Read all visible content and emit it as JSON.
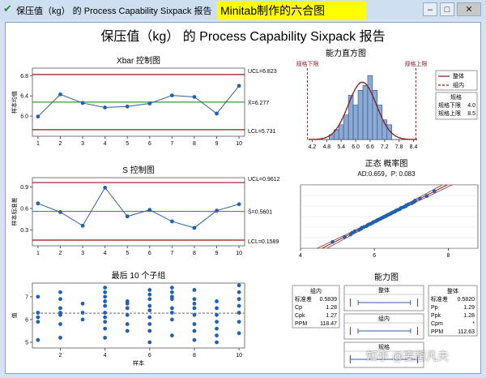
{
  "window": {
    "title": "保压值（kg） 的 Process Capability Sixpack 报告",
    "banner": "Minitab制作的六合图",
    "controls": {
      "minimize": "–",
      "maximize": "□",
      "close": "✕"
    }
  },
  "watermark": "知乎 @妄想凡夫",
  "chart_data": {
    "type": "capability-sixpack",
    "title": "保压值（kg） 的 Process Capability Sixpack 报告",
    "xbar": {
      "title": "Xbar 控制图",
      "ylabel": "样本均值",
      "x": [
        1,
        2,
        3,
        4,
        5,
        6,
        7,
        8,
        9,
        10
      ],
      "values": [
        5.99,
        6.43,
        6.26,
        6.17,
        6.19,
        6.25,
        6.41,
        6.38,
        6.05,
        6.6
      ],
      "ylim": [
        5.6,
        6.95
      ],
      "yticks": [
        "6.8",
        "6.4",
        "6.0"
      ],
      "ytick_values": [
        6.8,
        6.4,
        6.0
      ],
      "xticks": [
        "1",
        "2",
        "3",
        "4",
        "5",
        "6",
        "7",
        "8",
        "9",
        "10"
      ],
      "ucl": 6.823,
      "center": 6.277,
      "lcl": 5.731,
      "ucl_label": "UCL=6.823",
      "center_label": "X̄=6.277",
      "lcl_label": "LCL=5.731"
    },
    "s_chart": {
      "title": "S 控制图",
      "ylabel": "样本标准差",
      "x": [
        1,
        2,
        3,
        4,
        5,
        6,
        7,
        8,
        9,
        10
      ],
      "values": [
        0.67,
        0.55,
        0.36,
        0.89,
        0.49,
        0.58,
        0.42,
        0.33,
        0.57,
        0.66
      ],
      "ylim": [
        0.08,
        1.03
      ],
      "yticks": [
        "0.9",
        "0.6",
        "0.3"
      ],
      "ytick_values": [
        0.9,
        0.6,
        0.3
      ],
      "xticks": [
        "1",
        "2",
        "3",
        "4",
        "5",
        "6",
        "7",
        "8",
        "9",
        "10"
      ],
      "ucl": 0.9612,
      "center": 0.5601,
      "lcl": 0.1589,
      "ucl_label": "UCL=0.9612",
      "center_label": "S̄=0.5601",
      "lcl_label": "LCL=0.1589"
    },
    "last10": {
      "title": "最后 10 个子组",
      "ylabel": "值",
      "xlabel": "样本",
      "xticks": [
        "2",
        "4",
        "6",
        "8",
        "10"
      ],
      "xtick_values": [
        2,
        4,
        6,
        8,
        10
      ],
      "yticks": [
        "7",
        "6",
        "5"
      ],
      "ytick_values": [
        7,
        6,
        5
      ],
      "ylim": [
        4.75,
        7.6
      ],
      "mean": 6.277,
      "groups": [
        [
          5.1,
          5.9,
          6.1,
          6.3,
          7.0
        ],
        [
          5.2,
          5.8,
          6.2,
          6.3,
          6.5,
          6.9,
          7.2
        ],
        [
          6.0,
          6.3,
          6.7
        ],
        [
          5.2,
          5.6,
          5.9,
          6.1,
          6.3,
          6.6,
          6.8,
          7.0,
          7.2,
          7.4
        ],
        [
          5.5,
          5.8,
          6.2,
          6.5,
          6.7,
          6.8
        ],
        [
          5.0,
          5.5,
          5.8,
          6.1,
          6.4,
          6.6,
          6.9,
          7.1,
          7.3
        ],
        [
          5.3,
          6.0,
          6.3,
          6.5,
          6.9,
          7.0,
          7.2,
          7.4
        ],
        [
          5.1,
          5.5,
          5.8,
          6.2,
          6.5,
          6.7,
          6.9,
          7.3
        ],
        [
          5.0,
          5.3,
          5.6,
          5.9,
          6.2,
          6.5,
          6.8
        ],
        [
          5.4,
          5.9,
          6.3,
          6.6,
          6.9,
          7.2,
          7.5
        ]
      ]
    },
    "histogram": {
      "title": "能力直方图",
      "bin_width": 0.2,
      "bins": [
        {
          "x": 5.0,
          "count": 1
        },
        {
          "x": 5.2,
          "count": 2
        },
        {
          "x": 5.4,
          "count": 3
        },
        {
          "x": 5.6,
          "count": 5
        },
        {
          "x": 5.8,
          "count": 9
        },
        {
          "x": 6.0,
          "count": 7
        },
        {
          "x": 6.2,
          "count": 10
        },
        {
          "x": 6.4,
          "count": 11
        },
        {
          "x": 6.6,
          "count": 13
        },
        {
          "x": 6.8,
          "count": 10
        },
        {
          "x": 7.0,
          "count": 7
        },
        {
          "x": 7.2,
          "count": 4
        },
        {
          "x": 7.4,
          "count": 3
        }
      ],
      "xlim": [
        4.05,
        8.55
      ],
      "xticks": [
        "4.2",
        "4.8",
        "5.4",
        "6.0",
        "6.6",
        "7.2",
        "7.8",
        "8.4"
      ],
      "xtick_values": [
        4.2,
        4.8,
        5.4,
        6.0,
        6.6,
        7.2,
        7.8,
        8.4
      ],
      "lsl": 4.0,
      "usl": 8.5,
      "lsl_label": "规格下限",
      "usl_label": "规格上限",
      "legend": {
        "overall": "整体",
        "within": "组内"
      },
      "spec_box": {
        "title": "规格",
        "rows": [
          [
            "规格下限",
            "4.0"
          ],
          [
            "规格上限",
            "8.5"
          ]
        ]
      },
      "mean": 6.277,
      "sd_overall": 0.582,
      "sd_within": 0.584
    },
    "normal_plot": {
      "title": "正态 概率图",
      "subtitle": "AD:0.659，P: 0.083",
      "xticks": [
        "4",
        "6",
        "8"
      ],
      "xtick_values": [
        4,
        6,
        8
      ],
      "xlim": [
        4.0,
        8.8
      ],
      "mean": 6.277,
      "sd": 0.582
    },
    "capability_plot": {
      "title": "能力图",
      "within_box": {
        "title": "组内",
        "rows": [
          [
            "标准差",
            "0.5839"
          ],
          [
            "Cp",
            "1.28"
          ],
          [
            "Cpk",
            "1.27"
          ],
          [
            "PPM",
            "118.47"
          ]
        ]
      },
      "overall_box": {
        "title": "整体",
        "rows": [
          [
            "标准差",
            "0.5820"
          ],
          [
            "Pp",
            "1.29"
          ],
          [
            "Ppk",
            "1.28"
          ],
          [
            "Cpm",
            "*"
          ],
          [
            "PPM",
            "112.63"
          ]
        ]
      },
      "bars": [
        {
          "label": "整体",
          "range": [
            4.53,
            8.02
          ],
          "spec": [
            4.0,
            8.5
          ]
        },
        {
          "label": "组内",
          "range": [
            4.52,
            8.03
          ],
          "spec": [
            4.0,
            8.5
          ]
        },
        {
          "label": "规格",
          "range": [
            4.0,
            8.5
          ],
          "spec": [
            4.0,
            8.5
          ]
        }
      ],
      "xlim": [
        3.6,
        8.9
      ]
    },
    "colors": {
      "line": "#2f5fa8",
      "point": "#2360b0",
      "ucl_lcl": "#8b1a1a",
      "center": "#3c9a3c",
      "bar_fill": "#8aaad4",
      "bar_stroke": "#2f4e86",
      "curve": "#8b1a1a",
      "grid_band": "#dfe6ef"
    }
  }
}
